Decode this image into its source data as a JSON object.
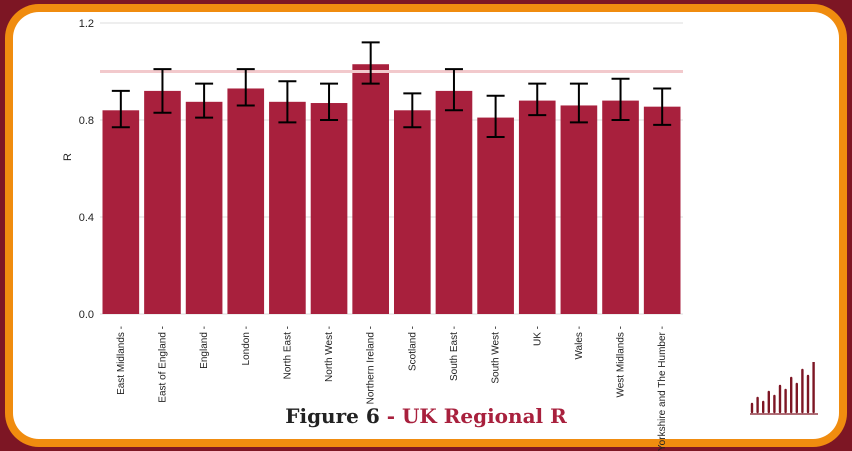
{
  "figure": {
    "label": "Figure 6",
    "separator": " - ",
    "title": "UK Regional R"
  },
  "colors": {
    "bar": "#a8203d",
    "error_bar": "#000000",
    "threshold_line": "#f2c9cc",
    "grid": "#dddddd",
    "frame": "#7d1624",
    "accent_border": "#f08c0f"
  },
  "chart_data": {
    "type": "bar",
    "ylabel": "R",
    "xlabel": "",
    "ylim": [
      0,
      1.2
    ],
    "yticks": [
      "0.0",
      "0.4",
      "0.8",
      "1.2"
    ],
    "reference_line": 1.0,
    "grid": true,
    "categories": [
      "East Midlands",
      "East of England",
      "England",
      "London",
      "North East",
      "North West",
      "Northern Ireland",
      "Scotland",
      "South East",
      "South West",
      "UK",
      "Wales",
      "West Midlands",
      "Yorkshire and The Humber"
    ],
    "values": [
      0.84,
      0.92,
      0.875,
      0.93,
      0.875,
      0.87,
      1.03,
      0.84,
      0.92,
      0.81,
      0.88,
      0.86,
      0.88,
      0.855
    ],
    "lower": [
      0.77,
      0.83,
      0.81,
      0.86,
      0.79,
      0.8,
      0.95,
      0.77,
      0.84,
      0.73,
      0.82,
      0.79,
      0.8,
      0.78
    ],
    "upper": [
      0.92,
      1.01,
      0.95,
      1.01,
      0.96,
      0.95,
      1.12,
      0.91,
      1.01,
      0.9,
      0.95,
      0.95,
      0.97,
      0.93
    ]
  }
}
